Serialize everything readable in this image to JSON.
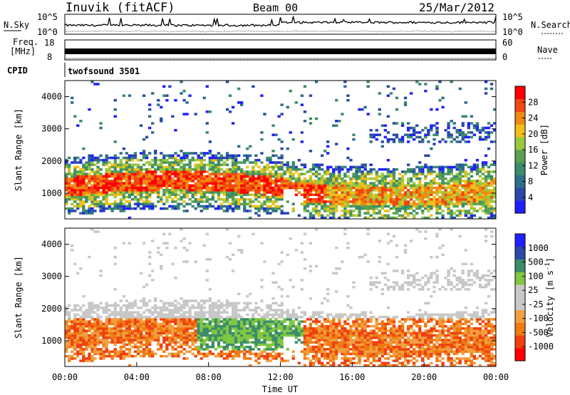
{
  "header": {
    "station": "Inuvik (fitACF)",
    "beam": "Beam 00",
    "date": "25/Mar/2012"
  },
  "noise_panel": {
    "left_label": "N.Sky",
    "right_label": "N.Search",
    "left_ticks": [
      "10^5",
      "10^0"
    ],
    "right_ticks": [
      "10^5",
      "10^0"
    ]
  },
  "freq_panel": {
    "left_label_1": "Freq.",
    "left_label_2": "[MHz]",
    "right_label": "Nave",
    "left_ticks": [
      "18",
      "8"
    ],
    "right_ticks": [
      "60",
      "0"
    ]
  },
  "cpid": {
    "label": "CPID",
    "value": "twofsound 3501"
  },
  "colors": {
    "power": [
      "#2020ff",
      "#2a4aa8",
      "#2e6e8a",
      "#3c8c6a",
      "#5aa050",
      "#9ac83c",
      "#f0c018",
      "#f08a10",
      "#f04810",
      "#ff0000"
    ],
    "velocity": [
      "#ff0000",
      "#f04010",
      "#f07a10",
      "#f0a040",
      "#c8c8c8",
      "#c8c8c8",
      "#80c840",
      "#3c8c6a",
      "#2a4aa8",
      "#2020ff"
    ]
  },
  "chart_data": [
    {
      "type": "heatmap",
      "name": "power",
      "xlabel": "",
      "ylabel": "Slant Range [km]",
      "ylim": [
        200,
        4500
      ],
      "yticks": [
        "1000",
        "2000",
        "3000",
        "4000"
      ],
      "colorbar_label": "Power [dB]",
      "colorbar_ticks": [
        "4",
        "8",
        "12",
        "16",
        "20",
        "24",
        "28"
      ],
      "colorbar_range": [
        0,
        32
      ]
    },
    {
      "type": "heatmap",
      "name": "velocity",
      "xlabel": "Time UT",
      "ylabel": "Slant Range [km]",
      "ylim": [
        200,
        4500
      ],
      "yticks": [
        "1000",
        "2000",
        "3000",
        "4000"
      ],
      "xticks": [
        "00:00",
        "04:00",
        "08:00",
        "12:00",
        "16:00",
        "20:00",
        "00:00"
      ],
      "colorbar_label": "Velocity [m s^-1]",
      "colorbar_ticks": [
        "1000",
        "500",
        "100",
        "25",
        "-25",
        "-100",
        "-500",
        "-1000"
      ]
    }
  ]
}
